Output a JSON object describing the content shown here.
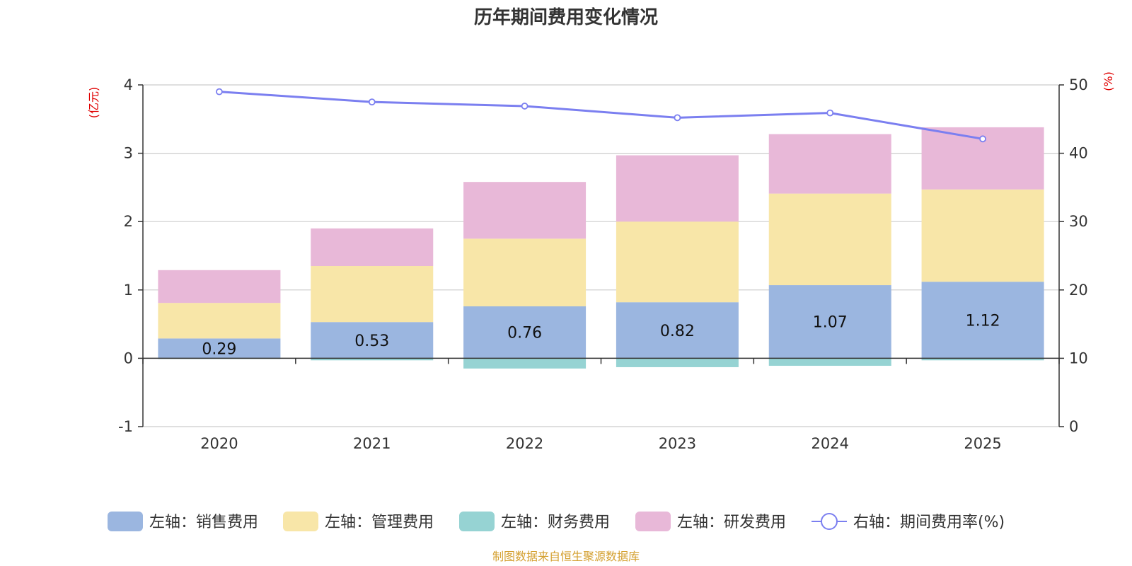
{
  "chart_data": {
    "type": "bar",
    "title": "历年期间费用变化情况",
    "categories": [
      "2020",
      "2021",
      "2022",
      "2023",
      "2024",
      "2025"
    ],
    "left_axis": {
      "unit": "(亿元)",
      "min": -1,
      "max": 4,
      "ticks": [
        "-1",
        "0",
        "1",
        "2",
        "3",
        "4"
      ]
    },
    "right_axis": {
      "unit": "(%)",
      "min": 0,
      "max": 50,
      "ticks": [
        "0",
        "10",
        "20",
        "30",
        "40",
        "50"
      ]
    },
    "series": [
      {
        "name": "左轴：销售费用",
        "axis": "left",
        "stack": true,
        "color": "#9bb6e0",
        "values": [
          0.29,
          0.53,
          0.76,
          0.82,
          1.07,
          1.12
        ],
        "labels": [
          "0.29",
          "0.53",
          "0.76",
          "0.82",
          "1.07",
          "1.12"
        ]
      },
      {
        "name": "左轴：管理费用",
        "axis": "left",
        "stack": true,
        "color": "#f8e6a8",
        "values": [
          0.52,
          0.82,
          0.99,
          1.18,
          1.34,
          1.35
        ]
      },
      {
        "name": "左轴：财务费用",
        "axis": "left",
        "stack": true,
        "color": "#96d3d3",
        "values": [
          -0.01,
          -0.03,
          -0.15,
          -0.13,
          -0.11,
          -0.03
        ]
      },
      {
        "name": "左轴：研发费用",
        "axis": "left",
        "stack": true,
        "color": "#e8b8d8",
        "values": [
          0.48,
          0.55,
          0.83,
          0.97,
          0.87,
          0.91
        ]
      },
      {
        "name": "右轴：期间费用率(%)",
        "axis": "right",
        "type": "line",
        "color": "#7b7ff0",
        "values": [
          49.0,
          47.5,
          46.9,
          45.2,
          45.9,
          42.1
        ]
      }
    ],
    "grid": true,
    "legend_position": "bottom"
  },
  "colors": {
    "axis_unit": "#e00000",
    "source": "#d4a030"
  },
  "source_text": "制图数据来自恒生聚源数据库"
}
